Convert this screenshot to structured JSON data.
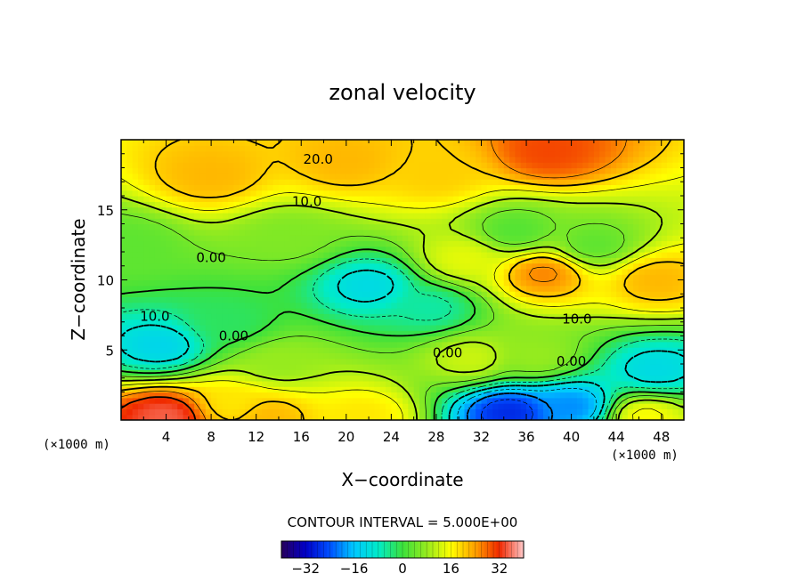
{
  "chart_data": {
    "type": "heatmap",
    "title": "zonal velocity",
    "xlabel": "X−coordinate",
    "ylabel": "Z−coordinate",
    "x_unit": "(×1000 m)",
    "z_unit": "(×1000 m)",
    "xlim": [
      0,
      50
    ],
    "ylim": [
      0,
      20
    ],
    "x_ticks": [
      "4",
      "8",
      "12",
      "16",
      "20",
      "24",
      "28",
      "32",
      "36",
      "40",
      "44",
      "48"
    ],
    "x_tick_values": [
      4,
      8,
      12,
      16,
      20,
      24,
      28,
      32,
      36,
      40,
      44,
      48
    ],
    "y_ticks": [
      "5",
      "10",
      "15"
    ],
    "y_tick_values": [
      5,
      10,
      15
    ],
    "contour_interval_text": "CONTOUR INTERVAL = 5.000E+00",
    "contour_labels": [
      {
        "text": "20.0",
        "x": 17.5,
        "y": 18.6
      },
      {
        "text": "10.0",
        "x": 16.5,
        "y": 15.6
      },
      {
        "text": "0.00",
        "x": 8.0,
        "y": 11.6
      },
      {
        "text": "10.0",
        "x": 3.0,
        "y": 7.4
      },
      {
        "text": "0.00",
        "x": 10.0,
        "y": 6.0
      },
      {
        "text": "0.00",
        "x": 29.0,
        "y": 4.8
      },
      {
        "text": "0.00",
        "x": 40.0,
        "y": 4.2
      },
      {
        "text": "10.0",
        "x": 40.5,
        "y": 7.2
      }
    ],
    "field_features": [
      {
        "x": 4,
        "y": 0.3,
        "value": 35
      },
      {
        "x": 10,
        "y": 1.2,
        "value": 18
      },
      {
        "x": 13,
        "y": 0.3,
        "value": 22
      },
      {
        "x": 21.5,
        "y": 0.3,
        "value": 18
      },
      {
        "x": 3.5,
        "y": 5.3,
        "value": -13
      },
      {
        "x": 9.5,
        "y": 7.0,
        "value": -2
      },
      {
        "x": 22.0,
        "y": 9.6,
        "value": -12
      },
      {
        "x": 27.5,
        "y": 8.0,
        "value": -6
      },
      {
        "x": 34.5,
        "y": 0.6,
        "value": -28
      },
      {
        "x": 40.0,
        "y": 1.0,
        "value": -20
      },
      {
        "x": 47.5,
        "y": 3.6,
        "value": -12
      },
      {
        "x": 37.5,
        "y": 10.5,
        "value": 26
      },
      {
        "x": 30.5,
        "y": 11.5,
        "value": 14
      },
      {
        "x": 47.5,
        "y": 10.0,
        "value": 22
      },
      {
        "x": 46.5,
        "y": 0.3,
        "value": 16
      },
      {
        "x": 8.0,
        "y": 17.5,
        "value": 22
      },
      {
        "x": 20.0,
        "y": 18.5,
        "value": 22
      },
      {
        "x": 38.0,
        "y": 19.2,
        "value": 30
      },
      {
        "x": 28.0,
        "y": 17.5,
        "value": 20
      },
      {
        "x": 35.0,
        "y": 13.5,
        "value": 2
      },
      {
        "x": 42.0,
        "y": 12.5,
        "value": 3
      },
      {
        "x": 14.0,
        "y": 4.0,
        "value": 8
      },
      {
        "x": 37.0,
        "y": 4.5,
        "value": 8
      },
      {
        "x": 31.0,
        "y": 4.4,
        "value": 12
      },
      {
        "x": 0.5,
        "y": 12.5,
        "value": 3
      },
      {
        "x": 15.0,
        "y": 13.0,
        "value": 6
      }
    ],
    "colorbar": {
      "range": [
        -40,
        40
      ],
      "tick_labels": [
        "−32",
        "−16",
        "0",
        "16",
        "32"
      ],
      "tick_values": [
        -32,
        -16,
        0,
        16,
        32
      ]
    }
  }
}
